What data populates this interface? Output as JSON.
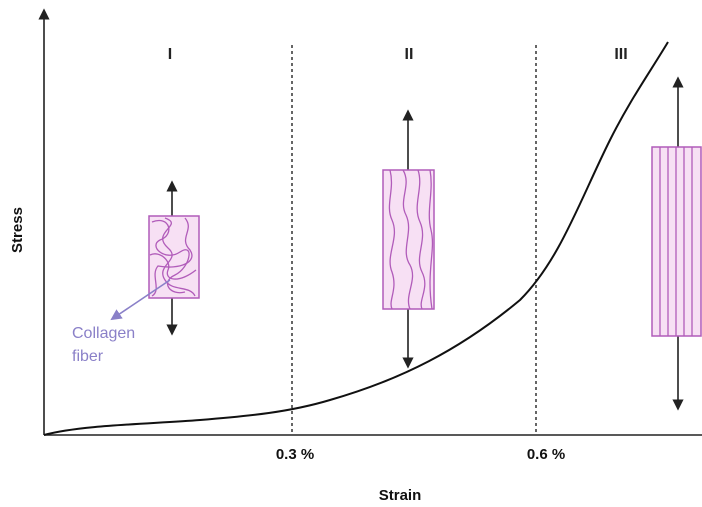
{
  "labels": {
    "y_axis": "Stress",
    "x_axis": "Strain",
    "regions": [
      "I",
      "II",
      "III"
    ],
    "strain_marks": [
      "0.3 %",
      "0.6 %"
    ],
    "annotation": [
      "Collagen",
      "fiber"
    ]
  }
}
